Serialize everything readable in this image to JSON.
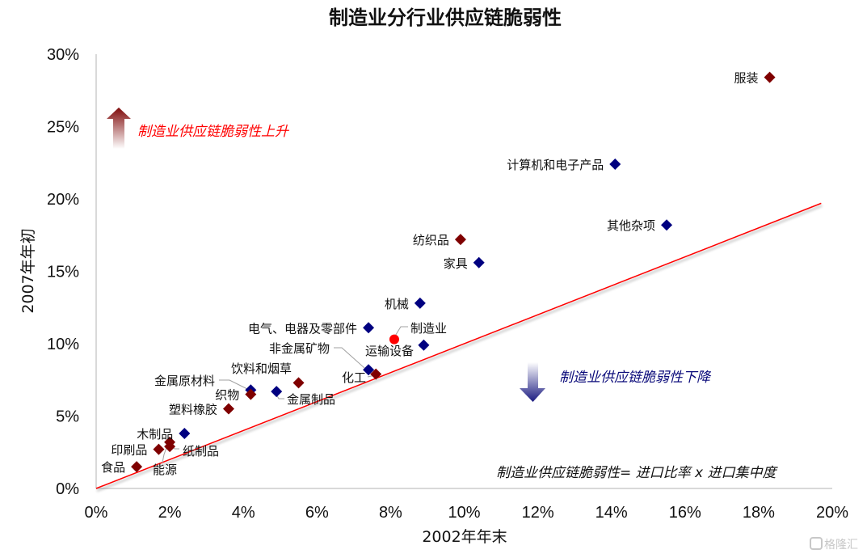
{
  "chart_data": {
    "type": "scatter",
    "title": "制造业分行业供应链脆弱性",
    "xlabel": "2002年年末",
    "ylabel": "2007年年初",
    "xlim": [
      0,
      20
    ],
    "ylim": [
      0,
      30
    ],
    "x_ticks": [
      "0%",
      "2%",
      "4%",
      "6%",
      "8%",
      "10%",
      "12%",
      "14%",
      "16%",
      "18%",
      "20%"
    ],
    "y_ticks": [
      "0%",
      "5%",
      "10%",
      "15%",
      "20%",
      "25%",
      "30%"
    ],
    "grid": false,
    "reference_line": {
      "label": "y = x",
      "from": [
        0,
        0
      ],
      "to": [
        19.7,
        19.7
      ],
      "color": "#ff0000"
    },
    "colors": {
      "red_series": "#7f0000",
      "blue_series": "#000080",
      "aggregate": "#ff0000"
    },
    "points": [
      {
        "name": "服装",
        "x": 18.3,
        "y": 28.4,
        "group": "red",
        "label_pos": "left"
      },
      {
        "name": "计算机和电子产品",
        "x": 14.1,
        "y": 22.4,
        "group": "blue",
        "label_pos": "left"
      },
      {
        "name": "其他杂项",
        "x": 15.5,
        "y": 18.2,
        "group": "blue",
        "label_pos": "left"
      },
      {
        "name": "纺织品",
        "x": 9.9,
        "y": 17.2,
        "group": "red",
        "label_pos": "left"
      },
      {
        "name": "家具",
        "x": 10.4,
        "y": 15.6,
        "group": "blue",
        "label_pos": "left"
      },
      {
        "name": "机械",
        "x": 8.8,
        "y": 12.8,
        "group": "blue",
        "label_pos": "left"
      },
      {
        "name": "电气、电器及零部件",
        "x": 7.4,
        "y": 11.1,
        "group": "blue",
        "label_pos": "left"
      },
      {
        "name": "制造业",
        "x": 8.1,
        "y": 10.3,
        "group": "aggregate",
        "label_pos": "leader-upright"
      },
      {
        "name": "运输设备",
        "x": 8.9,
        "y": 9.9,
        "group": "blue",
        "label_pos": "leader-left"
      },
      {
        "name": "非金属矿物",
        "x": 7.4,
        "y": 8.2,
        "group": "blue",
        "label_pos": "leader-upleft"
      },
      {
        "name": "化工",
        "x": 7.6,
        "y": 7.9,
        "group": "red",
        "label_pos": "leader-left"
      },
      {
        "name": "饮料和烟草",
        "x": 5.5,
        "y": 7.3,
        "group": "red",
        "label_pos": "above"
      },
      {
        "name": "金属原材料",
        "x": 4.2,
        "y": 6.8,
        "group": "blue",
        "label_pos": "leader-upleft"
      },
      {
        "name": "织物",
        "x": 4.2,
        "y": 6.5,
        "group": "red",
        "label_pos": "left"
      },
      {
        "name": "金属制品",
        "x": 4.9,
        "y": 6.7,
        "group": "blue",
        "label_pos": "leader-right"
      },
      {
        "name": "塑料橡胶",
        "x": 3.6,
        "y": 5.5,
        "group": "red",
        "label_pos": "left"
      },
      {
        "name": "木制品",
        "x": 2.4,
        "y": 3.8,
        "group": "blue",
        "label_pos": "left"
      },
      {
        "name": "纸制品",
        "x": 2.0,
        "y": 3.2,
        "group": "red",
        "label_pos": "leader-right"
      },
      {
        "name": "能源",
        "x": 2.0,
        "y": 2.9,
        "group": "red",
        "label_pos": "leader-down"
      },
      {
        "name": "印刷品",
        "x": 1.7,
        "y": 2.7,
        "group": "red",
        "label_pos": "left"
      },
      {
        "name": "食品",
        "x": 1.1,
        "y": 1.5,
        "group": "red",
        "label_pos": "left"
      }
    ],
    "annotations": {
      "rise": "制造业供应链脆弱性上升",
      "fall": "制造业供应链脆弱性下降",
      "formula": "制造业供应链脆弱性= 进口比率 x 进口集中度"
    }
  },
  "watermark": "格隆汇"
}
